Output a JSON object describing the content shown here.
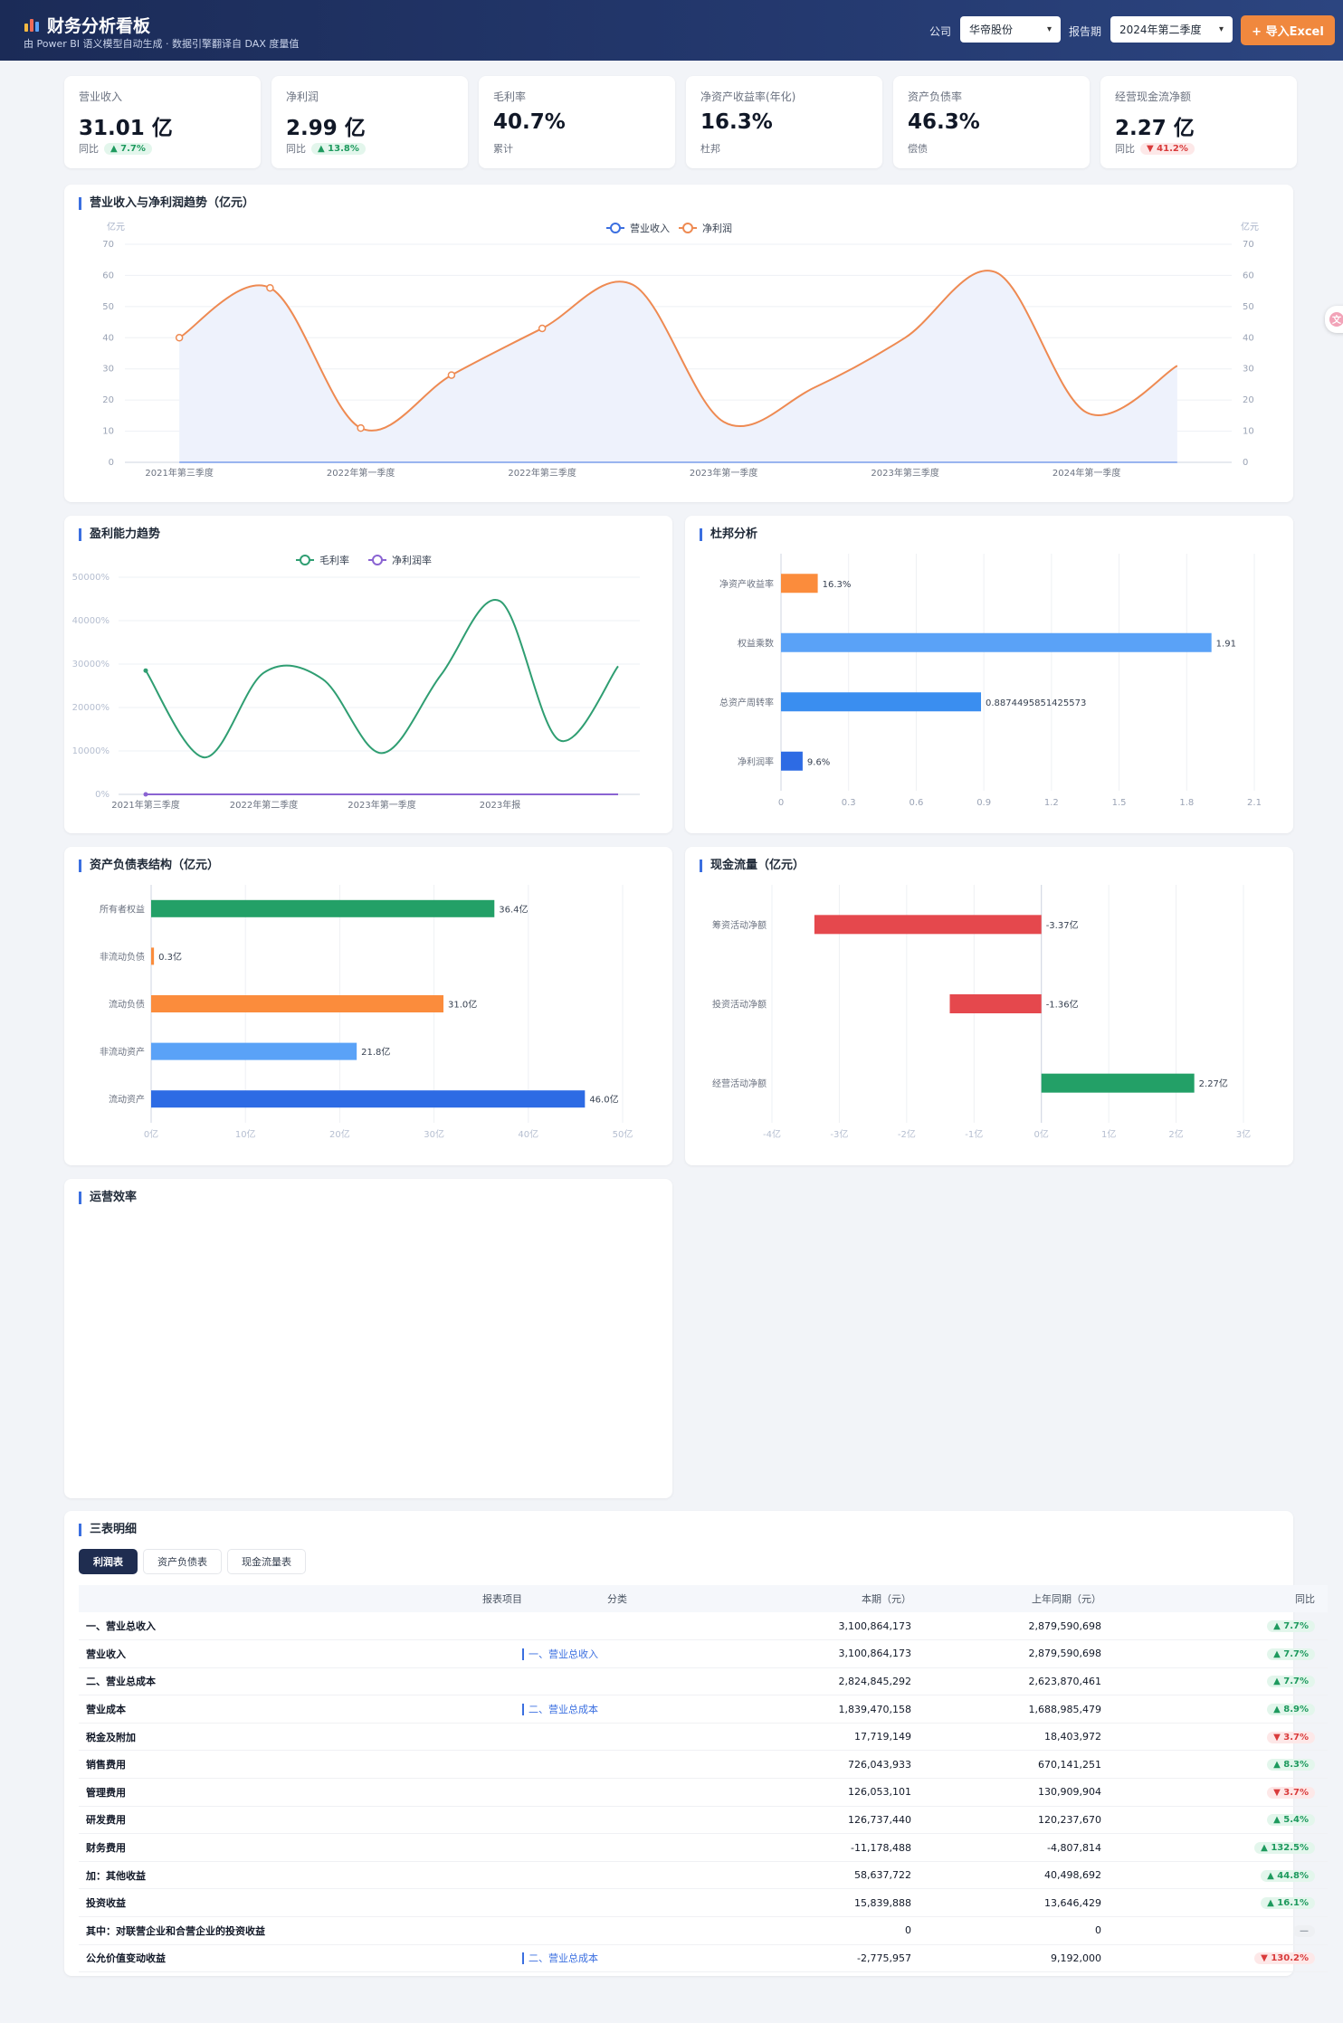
{
  "header": {
    "title": "财务分析看板",
    "subtitle": "由 Power BI 语义模型自动生成 · 数据引擎翻译自 DAX 度量值",
    "company_label": "公司",
    "company_value": "华帝股份",
    "period_label": "报告期",
    "period_value": "2024年第二季度",
    "import_button": "+ 导入Excel"
  },
  "kpis": [
    {
      "label": "营业收入",
      "value": "31.01 亿",
      "foot": "同比",
      "badge": "▲ 7.7%",
      "trend": "up"
    },
    {
      "label": "净利润",
      "value": "2.99 亿",
      "foot": "同比",
      "badge": "▲ 13.8%",
      "trend": "up"
    },
    {
      "label": "毛利率",
      "value": "40.7%",
      "foot": "累计",
      "badge": "",
      "trend": ""
    },
    {
      "label": "净资产收益率(年化)",
      "value": "16.3%",
      "foot": "杜邦",
      "badge": "",
      "trend": ""
    },
    {
      "label": "资产负债率",
      "value": "46.3%",
      "foot": "偿债",
      "badge": "",
      "trend": ""
    },
    {
      "label": "经营现金流净额",
      "value": "2.27 亿",
      "foot": "同比",
      "badge": "▼ 41.2%",
      "trend": "down"
    }
  ],
  "chart_titles": {
    "revenue": "营业收入与净利润趋势（亿元）",
    "profitability": "盈利能力趋势",
    "dupont": "杜邦分析",
    "balance": "资产负债表结构（亿元）",
    "cashflow": "现金流量（亿元）",
    "efficiency": "运营效率"
  },
  "chart_data": [
    {
      "type": "line",
      "title": "营业收入与净利润趋势（亿元）",
      "ylabel": "亿元",
      "y2label": "亿元",
      "ylim": [
        0,
        70
      ],
      "yticks": [
        0,
        10,
        20,
        30,
        40,
        50,
        60,
        70
      ],
      "x_tick_labels": [
        "2021年第三季度",
        "2022年第一季度",
        "2022年第三季度",
        "2023年第一季度",
        "2023年第三季度",
        "2024年第一季度"
      ],
      "grid": true,
      "legend": "top-center",
      "series": [
        {
          "name": "营业收入",
          "color": "#3b6fe0",
          "values": [
            0,
            0,
            0,
            0,
            0,
            0,
            0,
            0,
            0,
            0,
            0,
            0
          ]
        },
        {
          "name": "净利润",
          "color": "#ee8a52",
          "area_color": "#eef2fc",
          "values": [
            40,
            56,
            11,
            28,
            43,
            57,
            13,
            24,
            40,
            61,
            16,
            31
          ]
        }
      ]
    },
    {
      "type": "line",
      "title": "盈利能力趋势",
      "yticks_labels": [
        "0%",
        "10000%",
        "20000%",
        "30000%",
        "40000%",
        "50000%"
      ],
      "ylim": [
        0,
        50000
      ],
      "x_tick_labels": [
        "2021年第三季度",
        "2022年第二季度",
        "2023年第一季度",
        "2023年报"
      ],
      "grid": true,
      "legend": "top-center",
      "series": [
        {
          "name": "毛利率",
          "color": "#2f9e72",
          "values": [
            28500,
            8500,
            28000,
            26500,
            9500,
            27500,
            44500,
            12500,
            29500
          ]
        },
        {
          "name": "净利润率",
          "color": "#8a63d2",
          "values": [
            0,
            0,
            0,
            0,
            0,
            0,
            0,
            0,
            0
          ]
        }
      ]
    },
    {
      "type": "bar",
      "orientation": "horizontal",
      "title": "杜邦分析",
      "categories": [
        "净资产收益率",
        "权益乘数",
        "总资产周转率",
        "净利润率"
      ],
      "values": [
        0.163,
        1.91,
        0.8874495851425573,
        0.096
      ],
      "value_labels": [
        "16.3%",
        "1.91",
        "0.8874495851425573",
        "9.6%"
      ],
      "colors": [
        "#fb8c3c",
        "#5aa2f7",
        "#3a8ef0",
        "#2d6be4"
      ],
      "xlim": [
        0,
        2.1
      ],
      "xticks": [
        "0",
        "0.3",
        "0.6",
        "0.9",
        "1.2",
        "1.5",
        "1.8",
        "2.1"
      ]
    },
    {
      "type": "bar",
      "orientation": "horizontal",
      "title": "资产负债表结构（亿元）",
      "categories": [
        "所有者权益",
        "非流动负债",
        "流动负债",
        "非流动资产",
        "流动资产"
      ],
      "values": [
        36.4,
        0.3,
        31.0,
        21.8,
        46.0
      ],
      "value_labels": [
        "36.4亿",
        "0.3亿",
        "31.0亿",
        "21.8亿",
        "46.0亿"
      ],
      "colors": [
        "#23a067",
        "#fb8c3c",
        "#fb8c3c",
        "#5aa2f7",
        "#2d6be4"
      ],
      "xlim": [
        0,
        50
      ],
      "xticks": [
        "0亿",
        "10亿",
        "20亿",
        "30亿",
        "40亿",
        "50亿"
      ]
    },
    {
      "type": "bar",
      "orientation": "horizontal",
      "title": "现金流量（亿元）",
      "categories": [
        "筹资活动净额",
        "投资活动净额",
        "经营活动净额"
      ],
      "values": [
        -3.37,
        -1.36,
        2.27
      ],
      "value_labels": [
        "-3.37亿",
        "-1.36亿",
        "2.27亿"
      ],
      "colors": [
        "#e5484d",
        "#e5484d",
        "#23a067"
      ],
      "xlim": [
        -4,
        3
      ],
      "xticks": [
        "-4亿",
        "-3亿",
        "-2亿",
        "-1亿",
        "0亿",
        "1亿",
        "2亿",
        "3亿"
      ]
    }
  ],
  "statements": {
    "title": "三表明细",
    "tabs": [
      "利润表",
      "资产负债表",
      "现金流量表"
    ],
    "active_tab": 0,
    "columns": [
      "报表项目",
      "分类",
      "本期（元）",
      "上年同期（元）",
      "同比"
    ],
    "rows": [
      {
        "item": "一、营业总收入",
        "category": "",
        "current": "3,100,864,173",
        "prior": "2,879,590,698",
        "yoy": "▲ 7.7%",
        "trend": "up"
      },
      {
        "item": "营业收入",
        "category": "一、营业总收入",
        "current": "3,100,864,173",
        "prior": "2,879,590,698",
        "yoy": "▲ 7.7%",
        "trend": "up"
      },
      {
        "item": "二、营业总成本",
        "category": "",
        "current": "2,824,845,292",
        "prior": "2,623,870,461",
        "yoy": "▲ 7.7%",
        "trend": "up"
      },
      {
        "item": "营业成本",
        "category": "二、营业总成本",
        "current": "1,839,470,158",
        "prior": "1,688,985,479",
        "yoy": "▲ 8.9%",
        "trend": "up"
      },
      {
        "item": "税金及附加",
        "category": "",
        "current": "17,719,149",
        "prior": "18,403,972",
        "yoy": "▼ 3.7%",
        "trend": "down"
      },
      {
        "item": "销售费用",
        "category": "",
        "current": "726,043,933",
        "prior": "670,141,251",
        "yoy": "▲ 8.3%",
        "trend": "up"
      },
      {
        "item": "管理费用",
        "category": "",
        "current": "126,053,101",
        "prior": "130,909,904",
        "yoy": "▼ 3.7%",
        "trend": "down"
      },
      {
        "item": "研发费用",
        "category": "",
        "current": "126,737,440",
        "prior": "120,237,670",
        "yoy": "▲ 5.4%",
        "trend": "up"
      },
      {
        "item": "财务费用",
        "category": "",
        "current": "-11,178,488",
        "prior": "-4,807,814",
        "yoy": "▲ 132.5%",
        "trend": "up"
      },
      {
        "item": "加：其他收益",
        "category": "",
        "current": "58,637,722",
        "prior": "40,498,692",
        "yoy": "▲ 44.8%",
        "trend": "up"
      },
      {
        "item": "投资收益",
        "category": "",
        "current": "15,839,888",
        "prior": "13,646,429",
        "yoy": "▲ 16.1%",
        "trend": "up"
      },
      {
        "item": "其中：对联营企业和合营企业的投资收益",
        "category": "",
        "current": "0",
        "prior": "0",
        "yoy": "—",
        "trend": "flat"
      },
      {
        "item": "公允价值变动收益",
        "category": "二、营业总成本",
        "current": "-2,775,957",
        "prior": "9,192,000",
        "yoy": "▼ 130.2%",
        "trend": "down"
      }
    ]
  },
  "colors": {
    "accent": "#3b6fe0",
    "header_bg": "#1b2b57",
    "import_button": "#f0883e",
    "up": "#1e9a5e",
    "down": "#d93b3b"
  }
}
